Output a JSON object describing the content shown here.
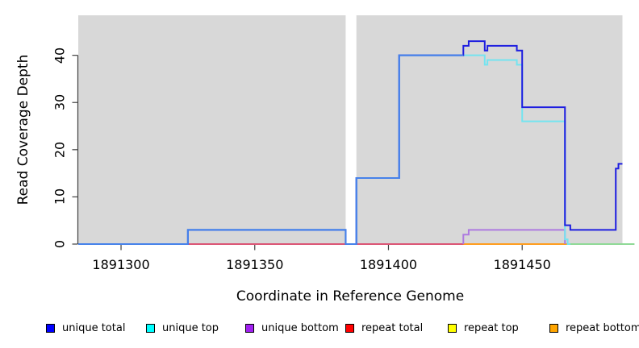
{
  "chart_data": {
    "type": "line",
    "subtype": "step",
    "title": "",
    "xlabel": "Coordinate in Reference Genome",
    "ylabel": "Read Coverage Depth",
    "x_ticks": [
      1891300,
      1891350,
      1891400,
      1891450
    ],
    "y_ticks": [
      0,
      10,
      20,
      30,
      40
    ],
    "xlim": [
      1891284,
      1891487.5
    ],
    "ylim": [
      0,
      48.5
    ],
    "grid": false,
    "plot_bg_color": "#d8d8d8",
    "no_data_gap": {
      "from": 1891384,
      "to": 1891388
    },
    "series": [
      {
        "name": "repeat total",
        "legend_color": "#ff0000",
        "line_color": "#db5575",
        "steps": [
          [
            1891284,
            0
          ]
        ],
        "end": 1891487.5
      },
      {
        "name": "repeat bottom",
        "legend_color": "#ffa500",
        "line_color": "#ff9d1e",
        "steps": [
          [
            1891428,
            0
          ]
        ],
        "end": 1891467
      },
      {
        "name": "repeat top",
        "legend_color": "#ffff00",
        "line_color": "#8fd996",
        "steps": [
          [
            1891467,
            0
          ]
        ],
        "end": 1891492
      },
      {
        "name": "unique bottom",
        "legend_color": "#a020f0",
        "line_color": "#ad7ae0",
        "steps": [
          [
            1891428,
            0
          ],
          [
            1891428,
            2
          ],
          [
            1891430,
            3
          ],
          [
            1891466,
            0
          ]
        ],
        "end": 1891466
      },
      {
        "name": "unique top",
        "legend_color": "#00ffff",
        "line_color": "#74e4f0",
        "steps": [
          [
            1891284,
            0
          ],
          [
            1891325,
            3
          ],
          [
            1891384,
            0
          ],
          [
            1891388,
            14
          ],
          [
            1891404,
            40
          ],
          [
            1891436,
            38
          ],
          [
            1891437,
            39
          ],
          [
            1891448,
            38
          ],
          [
            1891450,
            26
          ],
          [
            1891466,
            1
          ],
          [
            1891467,
            0
          ]
        ],
        "end": 1891468
      },
      {
        "name": "unique total",
        "legend_color": "#0000ff",
        "line_color": "#1e1ee0",
        "overlap_color": "#4682ea",
        "overlap_until": 1891428,
        "steps": [
          [
            1891284,
            0
          ],
          [
            1891325,
            3
          ],
          [
            1891384,
            0
          ],
          [
            1891388,
            14
          ],
          [
            1891404,
            40
          ],
          [
            1891428,
            42
          ],
          [
            1891430,
            43
          ],
          [
            1891436,
            41
          ],
          [
            1891437,
            42
          ],
          [
            1891448,
            41
          ],
          [
            1891450,
            29
          ],
          [
            1891466,
            4
          ],
          [
            1891468,
            3
          ],
          [
            1891485,
            16
          ],
          [
            1891486,
            17
          ]
        ],
        "end": 1891487.5
      }
    ],
    "legend": [
      {
        "label": "unique total",
        "color": "#0000ff"
      },
      {
        "label": "unique top",
        "color": "#00ffff"
      },
      {
        "label": "unique bottom",
        "color": "#a020f0"
      },
      {
        "label": "repeat total",
        "color": "#ff0000"
      },
      {
        "label": "repeat top",
        "color": "#ffff00"
      },
      {
        "label": "repeat bottom",
        "color": "#ffa500"
      }
    ]
  }
}
